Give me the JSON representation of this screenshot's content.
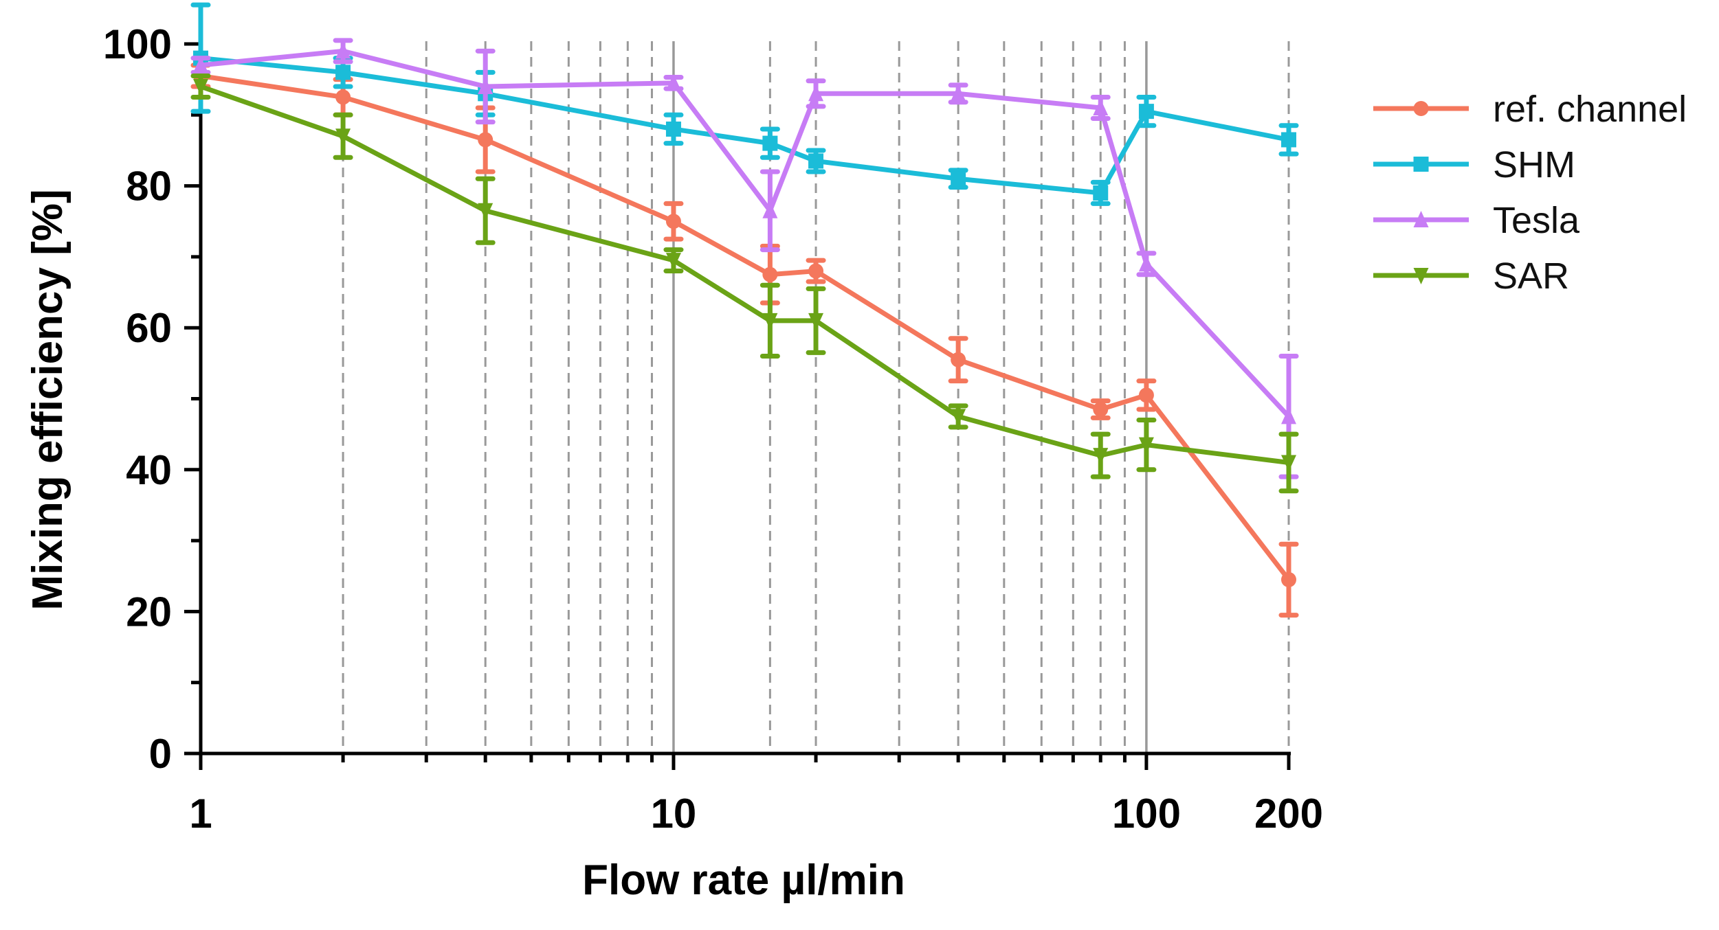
{
  "chart_data": {
    "type": "line",
    "x_scale": "log",
    "xlabel": "Flow rate µl/min",
    "ylabel": "Mixing efficiency [%]",
    "xlim": [
      1,
      200
    ],
    "ylim": [
      0,
      100
    ],
    "x_tick_values": [
      1,
      10,
      100,
      200
    ],
    "x_tick_labels": [
      "1",
      "10",
      "100",
      "200"
    ],
    "y_tick_values": [
      0,
      20,
      40,
      60,
      80,
      100
    ],
    "y_tick_labels": [
      "0",
      "20",
      "40",
      "60",
      "80",
      "100"
    ],
    "y_minor_step": 10,
    "solid_gridlines_x": [
      10,
      100
    ],
    "dashed_gridlines_x": [
      2,
      3,
      4,
      5,
      6,
      7,
      8,
      9,
      16,
      20,
      30,
      40,
      50,
      60,
      70,
      80,
      90,
      200
    ],
    "legend_position": "right",
    "x": [
      1,
      2,
      4,
      10,
      16,
      20,
      40,
      80,
      100,
      200
    ],
    "series": [
      {
        "name": "ref. channel",
        "color": "#f4775c",
        "marker": "circle",
        "values": [
          95.5,
          92.5,
          86.5,
          75,
          67.5,
          68,
          55.5,
          48.5,
          50.5,
          24.5
        ],
        "errors": [
          1.5,
          2.5,
          4.5,
          2.5,
          4,
          1.5,
          3,
          1.2,
          2,
          5
        ]
      },
      {
        "name": "SHM",
        "color": "#1bbcd8",
        "marker": "square",
        "values": [
          98,
          96,
          93,
          88,
          86,
          83.5,
          81,
          79,
          90.5,
          86.5
        ],
        "errors": [
          7.5,
          2,
          3,
          2,
          2,
          1.5,
          1.2,
          1.5,
          2,
          2
        ]
      },
      {
        "name": "Tesla",
        "color": "#c77cf5",
        "marker": "triangle",
        "values": [
          97,
          99,
          94,
          94.5,
          76.5,
          93,
          93,
          91,
          69,
          47.5
        ],
        "errors": [
          1,
          1.5,
          5,
          0.8,
          5.5,
          1.8,
          1.2,
          1.5,
          1.5,
          8.5
        ]
      },
      {
        "name": "SAR",
        "color": "#6aa316",
        "marker": "triangle-down",
        "values": [
          94,
          87,
          76.5,
          69.5,
          61,
          61,
          47.5,
          42,
          43.5,
          41
        ],
        "errors": [
          1.5,
          3,
          4.5,
          1.5,
          5,
          4.5,
          1.5,
          3,
          3.5,
          4
        ]
      }
    ]
  }
}
